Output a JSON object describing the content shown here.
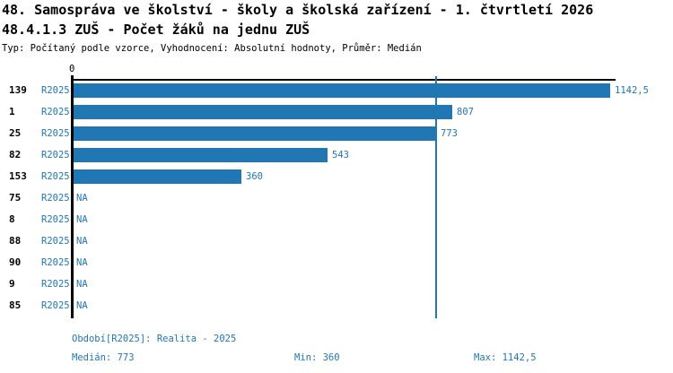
{
  "title": {
    "line1": "48. Samospráva ve školství - školy a školská zařízení - 1. čtvrtletí 2026",
    "line2": "48.4.1.3 ZUŠ - Počet žáků na jednu ZUŠ",
    "meta": "Typ: Počítaný podle vzorce, Vyhodnocení: Absolutní hodnoty, Průměr: Medián"
  },
  "chart_data": {
    "type": "bar",
    "orientation": "horizontal",
    "axis_zero_label": "0",
    "x_range": [
      0,
      1142.5
    ],
    "grid": false,
    "legend": "none",
    "median_reference_value": 773,
    "categories": [
      "139",
      "1",
      "25",
      "82",
      "153",
      "75",
      "8",
      "88",
      "90",
      "9",
      "85"
    ],
    "rows": [
      {
        "id": "139",
        "period": "R2025",
        "value": 1142.5,
        "value_label": "1142,5"
      },
      {
        "id": "1",
        "period": "R2025",
        "value": 807,
        "value_label": "807"
      },
      {
        "id": "25",
        "period": "R2025",
        "value": 773,
        "value_label": "773"
      },
      {
        "id": "82",
        "period": "R2025",
        "value": 543,
        "value_label": "543"
      },
      {
        "id": "153",
        "period": "R2025",
        "value": 360,
        "value_label": "360"
      },
      {
        "id": "75",
        "period": "R2025",
        "value": null,
        "value_label": "NA"
      },
      {
        "id": "8",
        "period": "R2025",
        "value": null,
        "value_label": "NA"
      },
      {
        "id": "88",
        "period": "R2025",
        "value": null,
        "value_label": "NA"
      },
      {
        "id": "90",
        "period": "R2025",
        "value": null,
        "value_label": "NA"
      },
      {
        "id": "9",
        "period": "R2025",
        "value": null,
        "value_label": "NA"
      },
      {
        "id": "85",
        "period": "R2025",
        "value": null,
        "value_label": "NA"
      }
    ],
    "colors": {
      "bar": "#2077B4",
      "blue_text": "#2077B4",
      "axis": "#000000",
      "title_text": "#000000",
      "background": "#ffffff"
    }
  },
  "footer": {
    "period_label": "Období[R2025]: Realita - 2025",
    "median_label": "Medián: 773",
    "min_label": "Min: 360",
    "max_label": "Max: 1142,5"
  }
}
